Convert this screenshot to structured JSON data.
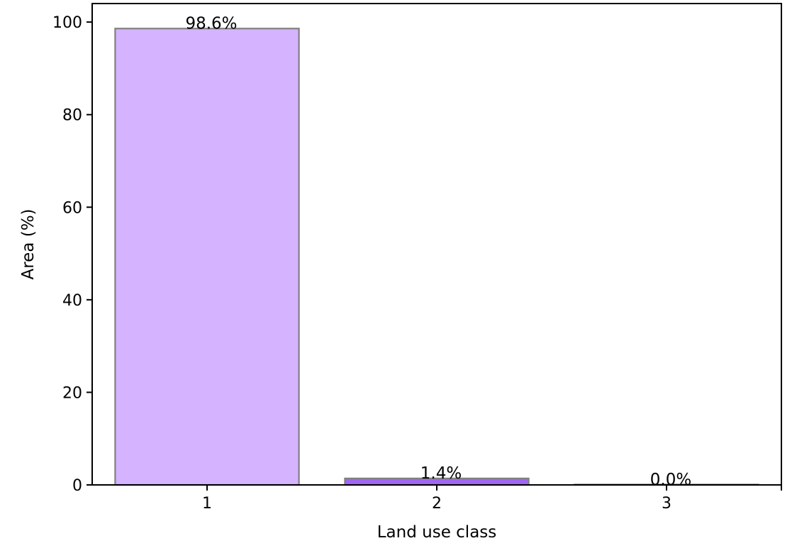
{
  "chart_data": {
    "type": "bar",
    "title": "",
    "xlabel": "Land use class",
    "ylabel": "Area (%)",
    "categories": [
      "1",
      "2",
      "3"
    ],
    "values": [
      98.6,
      1.4,
      0.0
    ],
    "data_labels": [
      "98.6%",
      "1.4%",
      "0.0%"
    ],
    "ylim": [
      0,
      104
    ],
    "xlim": [
      0.5,
      3.5
    ],
    "yticks": [
      0,
      20,
      40,
      60,
      80,
      100
    ],
    "ytick_labels": [
      "0",
      "20",
      "40",
      "60",
      "80",
      "100"
    ],
    "xticks": [
      1,
      2,
      3
    ],
    "xtick_labels": [
      "1",
      "2",
      "3"
    ],
    "bar_colors": [
      "#d5b3ff",
      "#a066f2",
      "#6a2fd0"
    ],
    "bar_edge_color": "#808080",
    "grid": false,
    "legend": "none"
  }
}
